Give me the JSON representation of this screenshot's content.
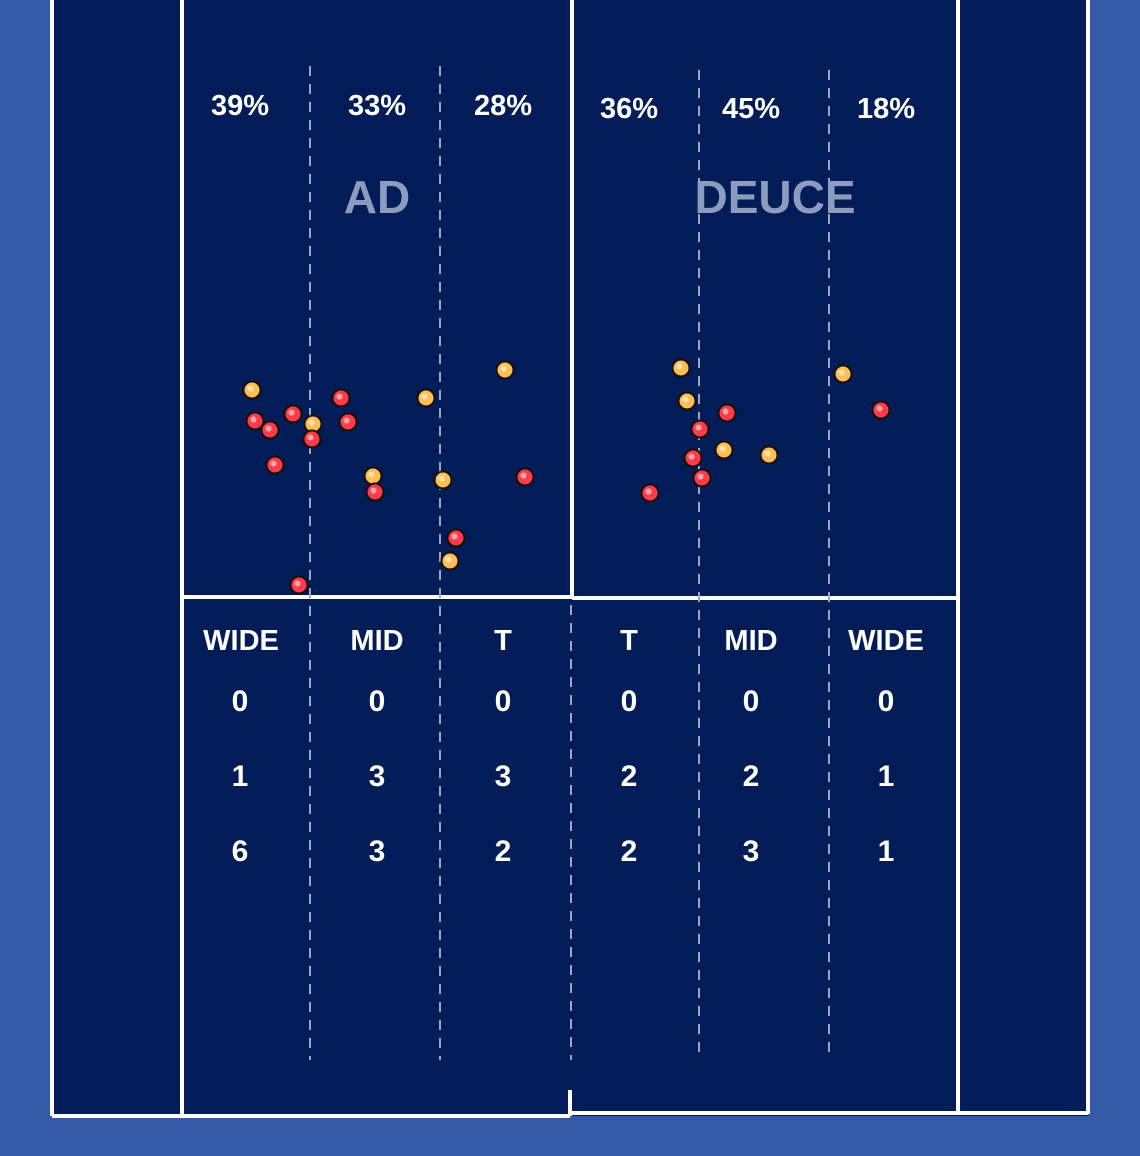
{
  "colors": {
    "outer_background": "#3459a6",
    "court": "#011c57",
    "lines": "#ffffff",
    "dashes": "#9aa6c4",
    "serve_a": "#ffbf57",
    "serve_b": "#ff3b4c"
  },
  "court_sides": [
    "AD",
    "DEUCE"
  ],
  "chart_data": {
    "type": "scatter",
    "zones": [
      {
        "side": "AD",
        "label": "WIDE",
        "percent": "39%",
        "counts": [
          "0",
          "1",
          "6"
        ]
      },
      {
        "side": "AD",
        "label": "MID",
        "percent": "33%",
        "counts": [
          "0",
          "3",
          "3"
        ]
      },
      {
        "side": "AD",
        "label": "T",
        "percent": "28%",
        "counts": [
          "0",
          "3",
          "2"
        ]
      },
      {
        "side": "DEUCE",
        "label": "T",
        "percent": "36%",
        "counts": [
          "0",
          "2",
          "2"
        ]
      },
      {
        "side": "DEUCE",
        "label": "MID",
        "percent": "45%",
        "counts": [
          "0",
          "2",
          "3"
        ]
      },
      {
        "side": "DEUCE",
        "label": "WIDE",
        "percent": "18%",
        "counts": [
          "0",
          "1",
          "1"
        ]
      }
    ],
    "ball_marks": {
      "yellow": [
        [
          252,
          390
        ],
        [
          313,
          424
        ],
        [
          426,
          398
        ],
        [
          505,
          370
        ],
        [
          373,
          476
        ],
        [
          443,
          480
        ],
        [
          450,
          561
        ],
        [
          681,
          368
        ],
        [
          687,
          401
        ],
        [
          724,
          450
        ],
        [
          769,
          455
        ],
        [
          843,
          374
        ]
      ],
      "red": [
        [
          255,
          421
        ],
        [
          270,
          430
        ],
        [
          293,
          414
        ],
        [
          312,
          439
        ],
        [
          275,
          465
        ],
        [
          341,
          398
        ],
        [
          348,
          422
        ],
        [
          375,
          492
        ],
        [
          525,
          477
        ],
        [
          456,
          538
        ],
        [
          299,
          585
        ],
        [
          727,
          413
        ],
        [
          700,
          429
        ],
        [
          693,
          458
        ],
        [
          702,
          478
        ],
        [
          650,
          493
        ],
        [
          881,
          410
        ]
      ]
    }
  }
}
